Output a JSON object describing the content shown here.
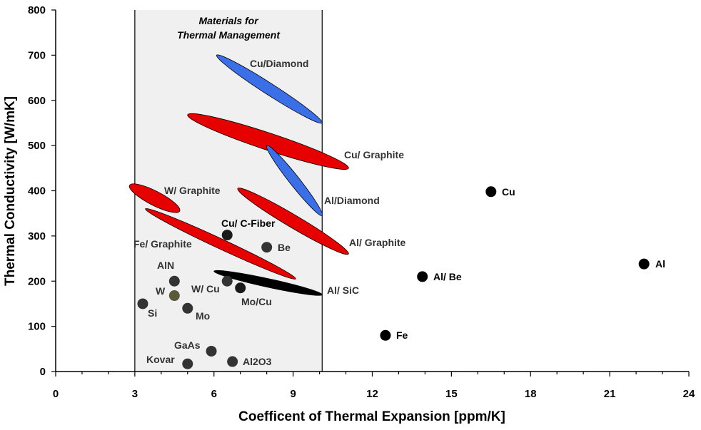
{
  "chart_data": {
    "type": "scatter",
    "xlabel": "Coefficent of Thermal Expansion [ppm/K]",
    "ylabel": "Thermal Conductivity [W/mK]",
    "xlim": [
      0,
      24
    ],
    "ylim": [
      0,
      800
    ],
    "x_ticks": [
      0,
      3,
      6,
      9,
      12,
      15,
      18,
      21,
      24
    ],
    "y_ticks": [
      0,
      100,
      200,
      300,
      400,
      500,
      600,
      700,
      800
    ],
    "grid": false,
    "region": {
      "title_line1": "Materials for",
      "title_line2": "Thermal Management",
      "x_range": [
        3,
        10.1
      ],
      "fill": "#f0f0f0"
    },
    "points": [
      {
        "label": "Cu",
        "x": 16.5,
        "y": 398,
        "color": "#000000"
      },
      {
        "label": "Al",
        "x": 22.3,
        "y": 238,
        "color": "#000000"
      },
      {
        "label": "Al/ Be",
        "x": 13.9,
        "y": 210,
        "color": "#000000"
      },
      {
        "label": "Fe",
        "x": 12.5,
        "y": 80,
        "color": "#000000"
      },
      {
        "label": "Cu/ C-Fiber",
        "x": 6.5,
        "y": 302,
        "color": "#1a1a1a"
      },
      {
        "label": "Be",
        "x": 8.0,
        "y": 275,
        "color": "#333333"
      },
      {
        "label": "AlN",
        "x": 4.5,
        "y": 200,
        "color": "#333333"
      },
      {
        "label": "W",
        "x": 4.5,
        "y": 168,
        "color": "#5a5a3a"
      },
      {
        "label": "W/ Cu",
        "x": 6.5,
        "y": 200,
        "color": "#333333"
      },
      {
        "label": "Mo/Cu",
        "x": 7.0,
        "y": 185,
        "color": "#1a1a1a"
      },
      {
        "label": "Si",
        "x": 3.3,
        "y": 150,
        "color": "#333333"
      },
      {
        "label": "Mo",
        "x": 5.0,
        "y": 140,
        "color": "#333333"
      },
      {
        "label": "GaAs",
        "x": 5.9,
        "y": 45,
        "color": "#333333"
      },
      {
        "label": "Al2O3",
        "x": 6.7,
        "y": 22,
        "color": "#333333"
      },
      {
        "label": "Kovar",
        "x": 5.0,
        "y": 17,
        "color": "#333333"
      }
    ],
    "composite_ranges": [
      {
        "label": "Cu/Diamond",
        "x1": 6.1,
        "y1": 700,
        "x2": 10.1,
        "y2": 550,
        "color": "#3b6fe8"
      },
      {
        "label": "Cu/ Graphite",
        "x1": 5.0,
        "y1": 568,
        "x2": 11.1,
        "y2": 450,
        "color": "#e60000"
      },
      {
        "label": "Al/Diamond",
        "x1": 8.0,
        "y1": 500,
        "x2": 10.1,
        "y2": 345,
        "color": "#3b6fe8"
      },
      {
        "label": "W/ Graphite",
        "x1": 2.8,
        "y1": 412,
        "x2": 4.7,
        "y2": 355,
        "color": "#e60000"
      },
      {
        "label": "Al/ Graphite",
        "x1": 6.9,
        "y1": 405,
        "x2": 11.1,
        "y2": 260,
        "color": "#e60000"
      },
      {
        "label": "Fe/ Graphite",
        "x1": 3.4,
        "y1": 360,
        "x2": 9.1,
        "y2": 205,
        "color": "#e60000"
      },
      {
        "label": "Al/ SiC",
        "x1": 6.0,
        "y1": 222,
        "x2": 10.1,
        "y2": 170,
        "color": "#000000"
      }
    ]
  }
}
